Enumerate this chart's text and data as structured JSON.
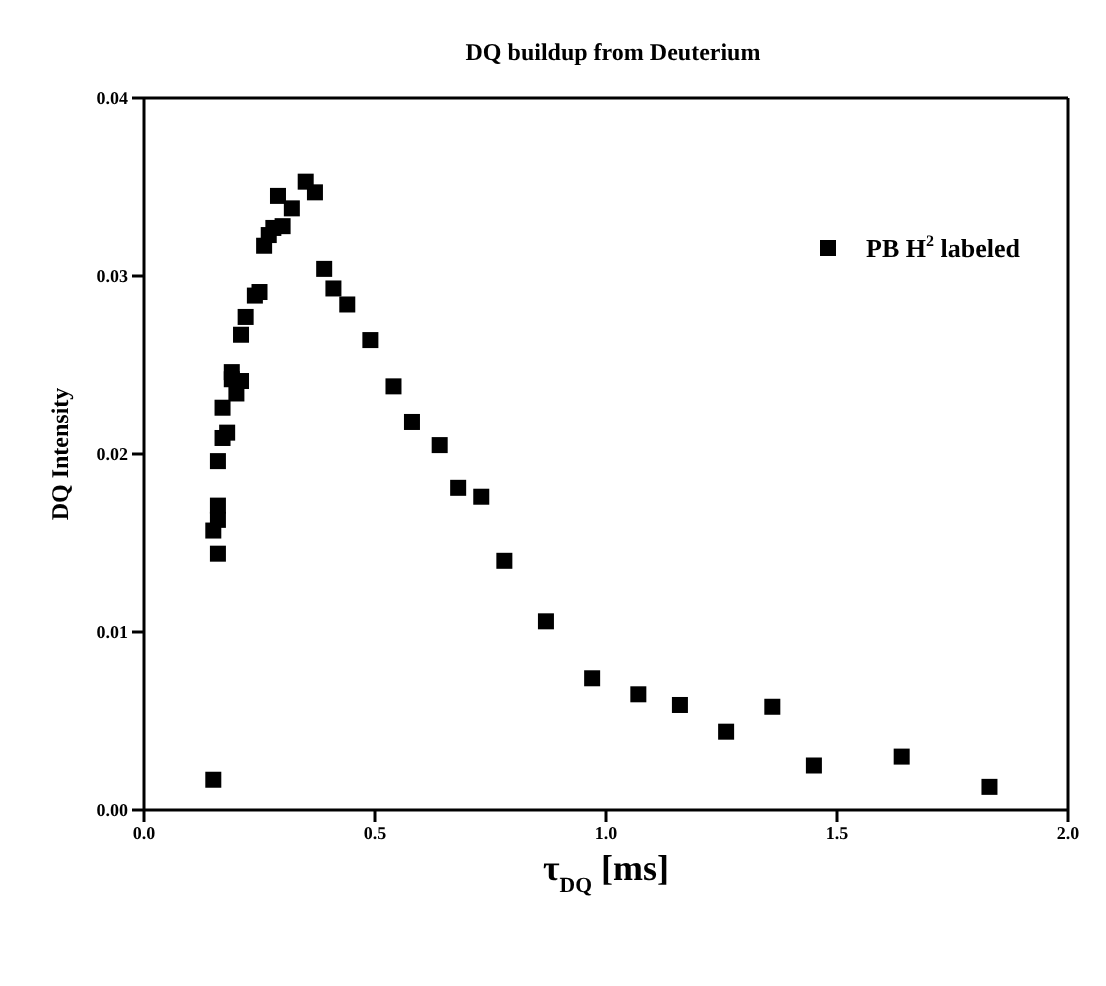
{
  "chart_data": {
    "type": "scatter",
    "title": "DQ buildup from Deuterium",
    "xlabel": "τ$_{DQ}$ [ms]",
    "ylabel": "DQ Intensity",
    "x": [
      0.15,
      0.15,
      0.16,
      0.16,
      0.16,
      0.16,
      0.17,
      0.18,
      0.17,
      0.19,
      0.19,
      0.2,
      0.21,
      0.21,
      0.22,
      0.24,
      0.25,
      0.26,
      0.27,
      0.28,
      0.3,
      0.29,
      0.32,
      0.35,
      0.37,
      0.39,
      0.41,
      0.44,
      0.49,
      0.54,
      0.58,
      0.64,
      0.68,
      0.73,
      0.78,
      0.87,
      0.97,
      1.07,
      1.16,
      1.26,
      1.36,
      1.45,
      1.64,
      1.83
    ],
    "series": [
      {
        "name": "PB H$^{2}$ labeled",
        "color": "#000000",
        "values": [
          0.0017,
          0.0157,
          0.0163,
          0.0171,
          0.0144,
          0.0196,
          0.0209,
          0.0212,
          0.0226,
          0.0246,
          0.0242,
          0.0234,
          0.0241,
          0.0267,
          0.0277,
          0.0289,
          0.0291,
          0.0317,
          0.0323,
          0.0327,
          0.0328,
          0.0345,
          0.0338,
          0.0353,
          0.0347,
          0.0304,
          0.0293,
          0.0284,
          0.0264,
          0.0238,
          0.0218,
          0.0205,
          0.0181,
          0.0176,
          0.014,
          0.0106,
          0.0074,
          0.0065,
          0.0059,
          0.0044,
          0.0058,
          0.0025,
          0.003,
          0.0013
        ]
      }
    ],
    "xlim": [
      0,
      2
    ],
    "xticks": [
      {
        "value": 0,
        "label": "0.0"
      },
      {
        "value": 0.5,
        "label": "0.5"
      },
      {
        "value": 1,
        "label": "1.0"
      },
      {
        "value": 1.5,
        "label": "1.5"
      },
      {
        "value": 2,
        "label": "2.0"
      }
    ],
    "ylim": [
      0,
      0.04
    ],
    "yticks": [
      {
        "value": 0,
        "label": "0.00"
      },
      {
        "value": 0.01,
        "label": "0.01"
      },
      {
        "value": 0.02,
        "label": "0.02"
      },
      {
        "value": 0.03,
        "label": "0.03"
      },
      {
        "value": 0.04,
        "label": "0.04"
      }
    ],
    "marker": "square",
    "legend": "top right"
  }
}
